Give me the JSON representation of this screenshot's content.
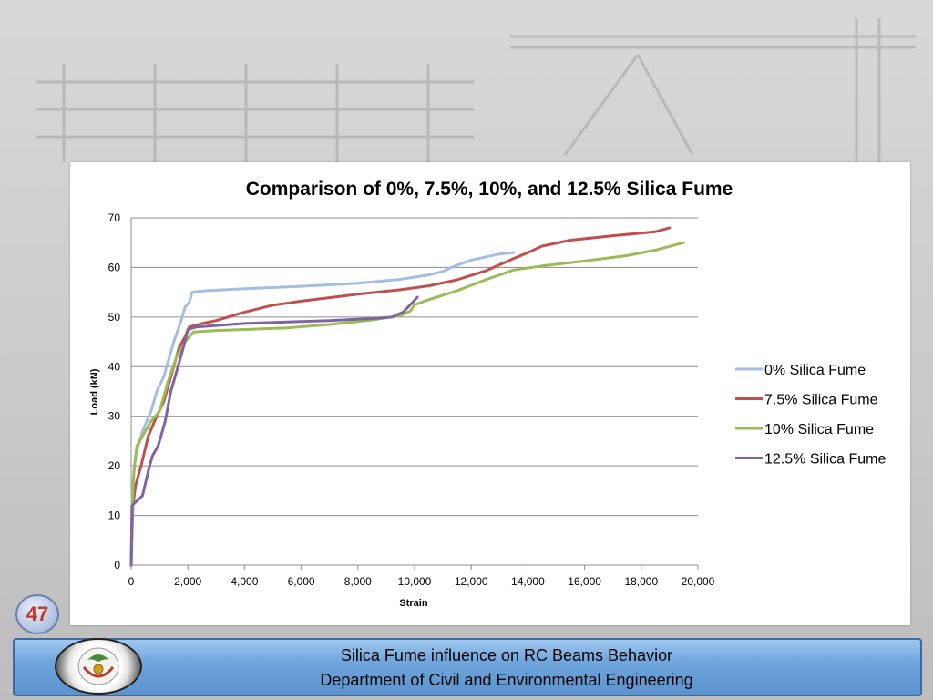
{
  "slide": {
    "page_number": "47",
    "footer_line1": "Silica Fume influence on RC Beams Behavior",
    "footer_line2": "Department of Civil and Environmental Engineering"
  },
  "chart_data": {
    "type": "line",
    "title": "Comparison of 0%, 7.5%, 10%, and 12.5% Silica Fume",
    "xlabel": "Strain",
    "ylabel": "Load (kN)",
    "xlim": [
      0,
      20000
    ],
    "ylim": [
      0,
      70
    ],
    "x_ticks": [
      "0",
      "2,000",
      "4,000",
      "6,000",
      "8,000",
      "10,000",
      "12,000",
      "14,000",
      "16,000",
      "18,000",
      "20,000"
    ],
    "y_ticks": [
      "0",
      "10",
      "20",
      "30",
      "40",
      "50",
      "60",
      "70"
    ],
    "grid": "horizontal",
    "legend_position": "right",
    "series": [
      {
        "name": "0% Silica Fume",
        "color": "#a4bde2",
        "points": [
          [
            0,
            0
          ],
          [
            40,
            15
          ],
          [
            150,
            22
          ],
          [
            400,
            27
          ],
          [
            700,
            31
          ],
          [
            900,
            35
          ],
          [
            1150,
            38
          ],
          [
            1500,
            45
          ],
          [
            1750,
            49
          ],
          [
            1900,
            52
          ],
          [
            2050,
            53
          ],
          [
            2150,
            55
          ],
          [
            2600,
            55.3
          ],
          [
            4000,
            55.7
          ],
          [
            6000,
            56.2
          ],
          [
            8000,
            56.8
          ],
          [
            9500,
            57.6
          ],
          [
            10500,
            58.5
          ],
          [
            11000,
            59.2
          ],
          [
            11300,
            60
          ],
          [
            12000,
            61.5
          ],
          [
            13000,
            62.7
          ],
          [
            13500,
            63
          ]
        ]
      },
      {
        "name": "7.5% Silica Fume",
        "color": "#c0504d",
        "points": [
          [
            0,
            0
          ],
          [
            60,
            12
          ],
          [
            150,
            16
          ],
          [
            350,
            20
          ],
          [
            600,
            26
          ],
          [
            900,
            30
          ],
          [
            1150,
            33
          ],
          [
            1450,
            39
          ],
          [
            1700,
            44
          ],
          [
            1900,
            46
          ],
          [
            2050,
            48
          ],
          [
            2500,
            48.7
          ],
          [
            3000,
            49.3
          ],
          [
            4000,
            51
          ],
          [
            5000,
            52.4
          ],
          [
            6000,
            53.2
          ],
          [
            8000,
            54.6
          ],
          [
            9500,
            55.5
          ],
          [
            10500,
            56.3
          ],
          [
            11500,
            57.5
          ],
          [
            12500,
            59.3
          ],
          [
            13500,
            61.8
          ],
          [
            14000,
            63
          ],
          [
            14500,
            64.3
          ],
          [
            15500,
            65.5
          ],
          [
            17000,
            66.4
          ],
          [
            18500,
            67.2
          ],
          [
            19000,
            68
          ]
        ]
      },
      {
        "name": "10% Silica Fume",
        "color": "#9bbb59",
        "points": [
          [
            0,
            0
          ],
          [
            50,
            14
          ],
          [
            100,
            19
          ],
          [
            200,
            24
          ],
          [
            400,
            26
          ],
          [
            700,
            29
          ],
          [
            1000,
            31
          ],
          [
            1300,
            37
          ],
          [
            1600,
            42
          ],
          [
            1900,
            45
          ],
          [
            2200,
            47
          ],
          [
            3000,
            47.3
          ],
          [
            4000,
            47.5
          ],
          [
            5500,
            47.8
          ],
          [
            7000,
            48.5
          ],
          [
            8500,
            49.4
          ],
          [
            9500,
            50.3
          ],
          [
            9850,
            51.2
          ],
          [
            10000,
            52.5
          ],
          [
            10500,
            53.5
          ],
          [
            11500,
            55.3
          ],
          [
            12500,
            57.5
          ],
          [
            13500,
            59.5
          ],
          [
            14500,
            60.3
          ],
          [
            16000,
            61.3
          ],
          [
            17500,
            62.4
          ],
          [
            18500,
            63.5
          ],
          [
            19500,
            65
          ]
        ]
      },
      {
        "name": "12.5% Silica Fume",
        "color": "#8064a2",
        "points": [
          [
            0,
            0
          ],
          [
            30,
            12
          ],
          [
            400,
            14
          ],
          [
            650,
            20
          ],
          [
            750,
            22
          ],
          [
            950,
            24
          ],
          [
            1050,
            26
          ],
          [
            1200,
            29
          ],
          [
            1400,
            35
          ],
          [
            1600,
            39
          ],
          [
            1850,
            44
          ],
          [
            2000,
            47.5
          ],
          [
            2300,
            48
          ],
          [
            3000,
            48.3
          ],
          [
            4000,
            48.7
          ],
          [
            5500,
            49
          ],
          [
            7000,
            49.3
          ],
          [
            8500,
            49.7
          ],
          [
            9200,
            50
          ],
          [
            9600,
            51
          ],
          [
            10100,
            54
          ]
        ]
      }
    ]
  }
}
